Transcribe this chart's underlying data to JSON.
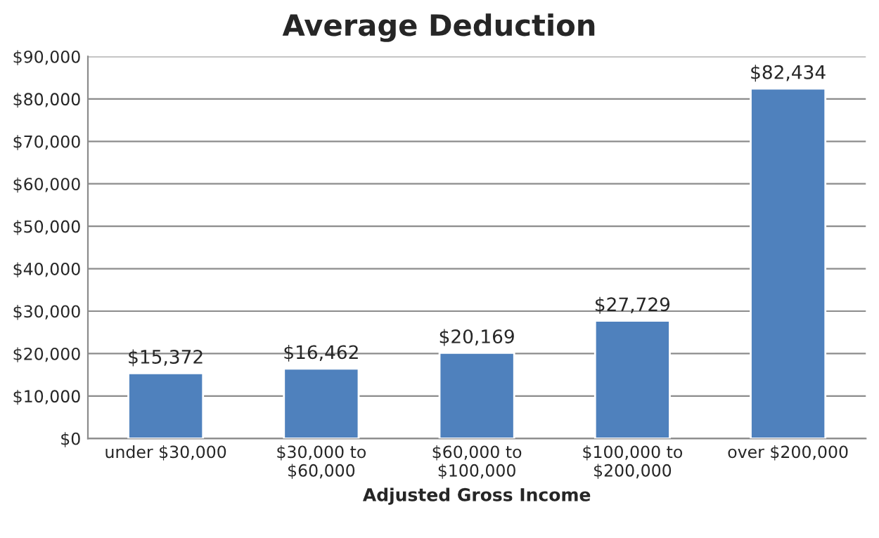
{
  "chart_data": {
    "type": "bar",
    "title": "Average Deduction",
    "xlabel": "Adjusted Gross Income",
    "categories": [
      "under $30,000",
      "$30,000 to\n$60,000",
      "$60,000 to\n$100,000",
      "$100,000 to\n$200,000",
      "over $200,000"
    ],
    "values": [
      15372,
      16462,
      20169,
      27729,
      82434
    ],
    "value_labels": [
      "$15,372",
      "$16,462",
      "$20,169",
      "$27,729",
      "$82,434"
    ],
    "color": "#4f81bd",
    "ylim": [
      0,
      90000
    ],
    "yticks": [
      {
        "value": 0,
        "label": "$0"
      },
      {
        "value": 10000,
        "label": "$10,000"
      },
      {
        "value": 20000,
        "label": "$20,000"
      },
      {
        "value": 30000,
        "label": "$30,000"
      },
      {
        "value": 40000,
        "label": "$40,000"
      },
      {
        "value": 50000,
        "label": "$50,000"
      },
      {
        "value": 60000,
        "label": "$60,000"
      },
      {
        "value": 70000,
        "label": "$70,000"
      },
      {
        "value": 80000,
        "label": "$80,000"
      },
      {
        "value": 90000,
        "label": "$90,000"
      }
    ],
    "grid": "y",
    "legend": false
  }
}
